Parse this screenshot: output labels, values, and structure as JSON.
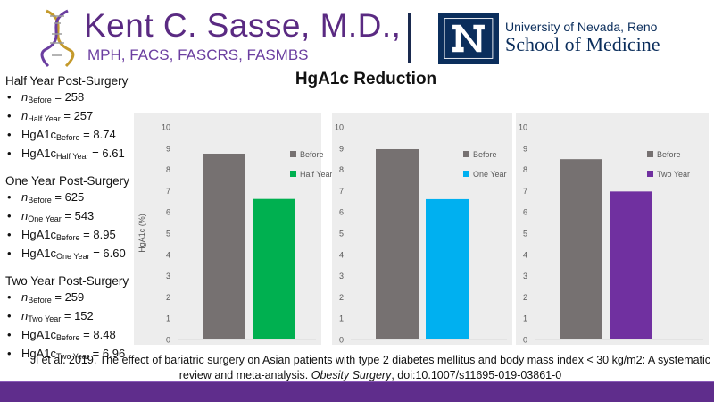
{
  "header": {
    "name": "Kent C. Sasse, M.D.,",
    "credentials": "MPH, FACS, FASCRS, FASMBS",
    "university": "University of Nevada, Reno",
    "school": "School of Medicine"
  },
  "title": "HgA1c Reduction",
  "stats": [
    {
      "heading": "Half Year Post-Surgery",
      "items": [
        {
          "label": "n",
          "sub": "Before",
          "italic": true,
          "value": "= 258"
        },
        {
          "label": "n",
          "sub": "Half Year",
          "italic": true,
          "value": "= 257"
        },
        {
          "label": "HgA1c",
          "sub": "Before",
          "italic": false,
          "value": "= 8.74"
        },
        {
          "label": "HgA1c",
          "sub": "Half Year",
          "italic": false,
          "value": "= 6.61"
        }
      ]
    },
    {
      "heading": "One Year Post-Surgery",
      "items": [
        {
          "label": "n",
          "sub": "Before",
          "italic": true,
          "value": "= 625"
        },
        {
          "label": "n",
          "sub": "One Year",
          "italic": true,
          "value": "= 543"
        },
        {
          "label": "HgA1c",
          "sub": "Before",
          "italic": false,
          "value": "= 8.95"
        },
        {
          "label": "HgA1c",
          "sub": "One Year",
          "italic": false,
          "value": "=  6.60"
        }
      ]
    },
    {
      "heading": "Two Year Post-Surgery",
      "items": [
        {
          "label": "n",
          "sub": "Before",
          "italic": true,
          "value": "= 259"
        },
        {
          "label": "n",
          "sub": "Two Year",
          "italic": true,
          "value": "= 152"
        },
        {
          "label": "HgA1c",
          "sub": "Before",
          "italic": false,
          "value": "= 8.48"
        },
        {
          "label": "HgA1c",
          "sub": "Two Year",
          "italic": false,
          "value": "=  6.96"
        }
      ]
    }
  ],
  "chart_data": [
    {
      "type": "bar",
      "categories": [
        "Before",
        "Half Year"
      ],
      "values": [
        8.74,
        6.61
      ],
      "colors": [
        "#767171",
        "#00b050"
      ],
      "ylabel": "HgA1c (%)",
      "ylim": [
        0,
        10
      ],
      "yticks": [
        "0",
        "1",
        "2",
        "3",
        "4",
        "5",
        "6",
        "7",
        "8",
        "9",
        "10"
      ],
      "legend": [
        "Before",
        "Half Year"
      ],
      "legend_position": "right",
      "grid": false
    },
    {
      "type": "bar",
      "categories": [
        "Before",
        "One Year"
      ],
      "values": [
        8.95,
        6.6
      ],
      "colors": [
        "#767171",
        "#00b0f0"
      ],
      "ylabel": "",
      "ylim": [
        0,
        10
      ],
      "yticks": [
        "0",
        "1",
        "2",
        "3",
        "4",
        "5",
        "6",
        "7",
        "8",
        "9",
        "10"
      ],
      "legend": [
        "Before",
        "One Year"
      ],
      "legend_position": "right",
      "grid": false
    },
    {
      "type": "bar",
      "categories": [
        "Before",
        "Two Year"
      ],
      "values": [
        8.48,
        6.96
      ],
      "colors": [
        "#767171",
        "#7030a0"
      ],
      "ylabel": "",
      "ylim": [
        0,
        10
      ],
      "yticks": [
        "0",
        "1",
        "2",
        "3",
        "4",
        "5",
        "6",
        "7",
        "8",
        "9",
        "10"
      ],
      "legend": [
        "Before",
        "Two Year"
      ],
      "legend_position": "right",
      "grid": false
    }
  ],
  "citation": {
    "pre": "Ji et al. 2019. The effect of bariatric surgery on Asian patients with type 2 diabetes mellitus and body mass index < 30 kg/m2: A systematic review and meta-analysis. ",
    "journal": "Obesity Surgery",
    "post": ", doi:10.1007/s11695-019-03861-0"
  },
  "colors": {
    "brand_purple": "#5f2d8c",
    "unr_navy": "#0b2e5c"
  }
}
